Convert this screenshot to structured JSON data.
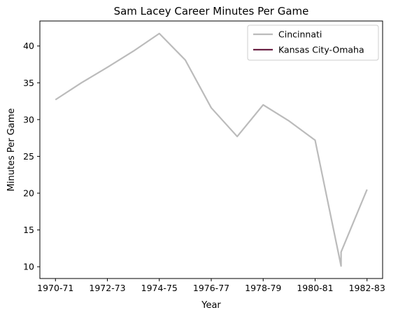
{
  "chart_data": {
    "type": "line",
    "title": "Sam Lacey Career Minutes Per Game",
    "xlabel": "Year",
    "ylabel": "Minutes Per Game",
    "x_tick_labels": [
      "1970-71",
      "1972-73",
      "1974-75",
      "1976-77",
      "1978-79",
      "1980-81",
      "1982-83"
    ],
    "x_tick_positions": [
      0,
      2,
      4,
      6,
      8,
      10,
      12
    ],
    "xlim": [
      -0.6,
      12.6
    ],
    "y_ticks": [
      10,
      15,
      20,
      25,
      30,
      35,
      40
    ],
    "ylim": [
      8.4,
      43.4
    ],
    "grid": false,
    "legend_position": "top-right",
    "series": [
      {
        "name": "Cincinnati",
        "color": "#bbbbbb",
        "points": [
          {
            "x": 0,
            "y": 32.7
          },
          {
            "x": 1,
            "y": 35.0
          },
          {
            "x": 2,
            "y": 37.1
          },
          {
            "x": 3,
            "y": 39.3
          },
          {
            "x": 4,
            "y": 41.7
          },
          {
            "x": 5,
            "y": 38.1
          },
          {
            "x": 6,
            "y": 31.6
          },
          {
            "x": 7,
            "y": 27.7
          },
          {
            "x": 8,
            "y": 32.0
          },
          {
            "x": 9,
            "y": 29.8
          },
          {
            "x": 10,
            "y": 27.2
          },
          {
            "x": 11,
            "y": 10.1
          },
          {
            "x": 11,
            "y": 12.0
          },
          {
            "x": 12,
            "y": 20.5
          }
        ]
      },
      {
        "name": "Kansas City-Omaha",
        "color": "#6b2345",
        "points": []
      }
    ]
  }
}
